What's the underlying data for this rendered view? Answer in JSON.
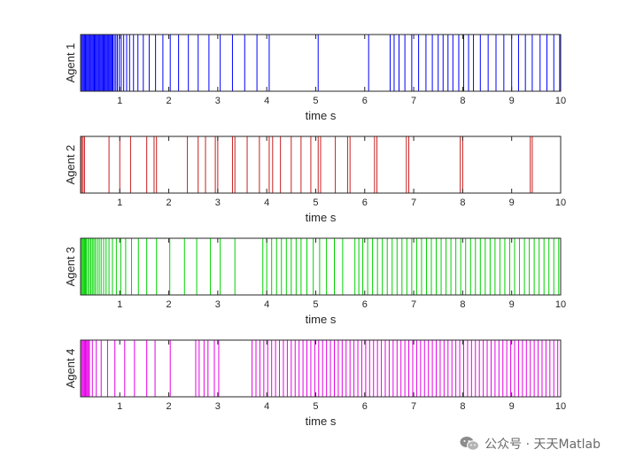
{
  "chart_data": [
    {
      "type": "event-raster",
      "ylabel": "Agent 1",
      "xlabel": "time s",
      "xlim": [
        0.2,
        10
      ],
      "xticks": [
        "1",
        "2",
        "3",
        "4",
        "5",
        "6",
        "7",
        "8",
        "9",
        "10"
      ],
      "color": "#0000ff",
      "events": [
        0.22,
        0.24,
        0.26,
        0.28,
        0.3,
        0.32,
        0.34,
        0.36,
        0.38,
        0.4,
        0.42,
        0.44,
        0.46,
        0.48,
        0.5,
        0.52,
        0.54,
        0.56,
        0.58,
        0.6,
        0.62,
        0.64,
        0.66,
        0.68,
        0.7,
        0.72,
        0.74,
        0.76,
        0.78,
        0.8,
        0.82,
        0.84,
        0.86,
        0.89,
        0.92,
        0.95,
        0.99,
        1.03,
        1.08,
        1.14,
        1.2,
        1.28,
        1.37,
        1.48,
        1.6,
        1.73,
        1.88,
        2.03,
        2.2,
        2.4,
        2.6,
        2.82,
        3.05,
        3.3,
        3.55,
        3.8,
        4.05,
        5.05,
        6.08,
        6.52,
        6.6,
        6.7,
        6.82,
        6.96,
        7.1,
        7.25,
        7.38,
        7.5,
        7.6,
        7.7,
        7.8,
        7.92,
        8.02,
        8.12,
        8.22,
        8.36,
        8.52,
        8.68,
        8.84,
        9.0,
        9.14,
        9.28,
        9.42,
        9.58,
        9.72,
        9.86,
        9.98
      ]
    },
    {
      "type": "event-raster",
      "ylabel": "Agent 2",
      "xlabel": "time s",
      "xlim": [
        0.2,
        10
      ],
      "xticks": [
        "1",
        "2",
        "3",
        "4",
        "5",
        "6",
        "7",
        "8",
        "9",
        "10"
      ],
      "color": "#c81e1e",
      "events": [
        0.22,
        0.25,
        0.28,
        0.78,
        1.0,
        1.22,
        1.55,
        1.7,
        1.75,
        2.38,
        2.6,
        2.75,
        2.95,
        3.0,
        3.3,
        3.35,
        3.6,
        3.85,
        4.05,
        4.12,
        4.28,
        4.5,
        4.7,
        4.9,
        5.05,
        5.1,
        5.4,
        5.65,
        5.7,
        6.2,
        6.25,
        6.85,
        6.9,
        7.95,
        8.0,
        9.38,
        9.42
      ]
    },
    {
      "type": "event-raster",
      "ylabel": "Agent 3",
      "xlabel": "time s",
      "xlim": [
        0.2,
        10
      ],
      "xticks": [
        "1",
        "2",
        "3",
        "4",
        "5",
        "6",
        "7",
        "8",
        "9",
        "10"
      ],
      "color": "#00d200",
      "events": [
        0.22,
        0.24,
        0.26,
        0.28,
        0.3,
        0.32,
        0.35,
        0.38,
        0.41,
        0.44,
        0.47,
        0.5,
        0.54,
        0.58,
        0.62,
        0.67,
        0.72,
        0.78,
        0.85,
        0.93,
        1.02,
        1.12,
        1.24,
        1.38,
        1.55,
        1.75,
        2.02,
        2.32,
        2.57,
        2.85,
        3.05,
        3.35,
        3.92,
        4.0,
        4.1,
        4.2,
        4.3,
        4.4,
        4.5,
        4.6,
        4.7,
        4.82,
        4.95,
        5.08,
        5.22,
        5.38,
        5.55,
        5.8,
        5.88,
        5.96,
        6.06,
        6.16,
        6.26,
        6.36,
        6.46,
        6.56,
        6.66,
        6.76,
        6.86,
        6.96,
        7.06,
        7.16,
        7.26,
        7.36,
        7.46,
        7.56,
        7.66,
        7.76,
        7.86,
        7.96,
        8.06,
        8.16,
        8.26,
        8.36,
        8.46,
        8.56,
        8.66,
        8.76,
        8.86,
        8.96,
        9.06,
        9.16,
        9.26,
        9.36,
        9.46,
        9.56,
        9.66,
        9.76,
        9.86,
        9.96
      ]
    },
    {
      "type": "event-raster",
      "ylabel": "Agent 4",
      "xlabel": "time s",
      "xlim": [
        0.2,
        10
      ],
      "xticks": [
        "1",
        "2",
        "3",
        "4",
        "5",
        "6",
        "7",
        "8",
        "9",
        "10"
      ],
      "color": "#e600e6",
      "events": [
        0.22,
        0.24,
        0.26,
        0.28,
        0.3,
        0.32,
        0.34,
        0.36,
        0.38,
        0.44,
        0.52,
        0.62,
        0.75,
        0.9,
        1.1,
        1.3,
        1.55,
        1.72,
        2.03,
        2.55,
        2.62,
        2.72,
        2.8,
        2.93,
        3.02,
        3.7,
        3.78,
        3.86,
        3.94,
        4.02,
        4.1,
        4.18,
        4.26,
        4.34,
        4.42,
        4.5,
        4.58,
        4.66,
        4.74,
        4.82,
        4.9,
        4.98,
        5.06,
        5.14,
        5.22,
        5.3,
        5.38,
        5.46,
        5.54,
        5.62,
        5.7,
        5.78,
        5.86,
        5.94,
        6.02,
        6.1,
        6.18,
        6.26,
        6.34,
        6.42,
        6.5,
        6.58,
        6.66,
        6.74,
        6.82,
        6.9,
        6.98,
        7.06,
        7.14,
        7.22,
        7.3,
        7.38,
        7.46,
        7.54,
        7.62,
        7.7,
        7.78,
        7.86,
        7.94,
        8.02,
        8.1,
        8.18,
        8.26,
        8.34,
        8.42,
        8.5,
        8.58,
        8.66,
        8.74,
        8.82,
        8.9,
        8.98,
        9.06,
        9.14,
        9.22,
        9.3,
        9.38,
        9.46,
        9.54,
        9.62,
        9.7,
        9.78,
        9.86,
        9.94
      ]
    }
  ],
  "watermark": {
    "icon": "wechat-icon",
    "text": "公众号 · 天天Matlab"
  }
}
